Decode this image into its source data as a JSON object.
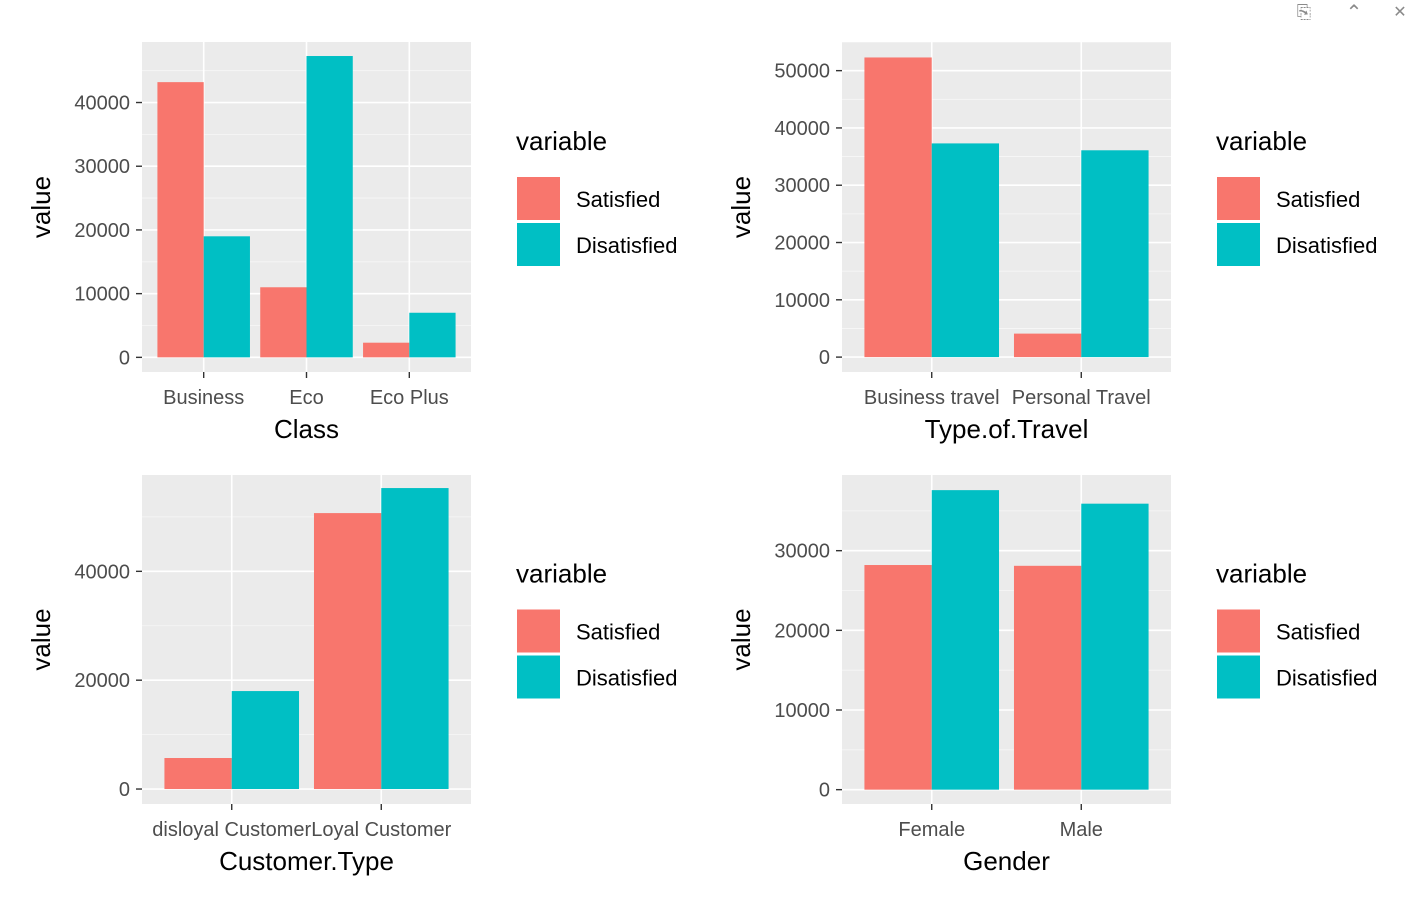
{
  "toolbar": {
    "items": [
      {
        "name": "export-icon",
        "glyph": "⎘"
      },
      {
        "name": "collapse-up-icon",
        "glyph": "⌃"
      },
      {
        "name": "close-icon",
        "glyph": "✕"
      }
    ]
  },
  "colors": {
    "panel_bg": "#EBEBEB",
    "grid_major": "#FFFFFF",
    "tick_text": "#4D4D4D",
    "axis_title": "#000000",
    "series": [
      "#F8766D",
      "#00BFC4"
    ]
  },
  "legend": {
    "title": "variable",
    "entries": [
      "Satisfied",
      "Disatisfied"
    ]
  },
  "chart_data": [
    {
      "type": "bar",
      "xlabel": "Class",
      "ylabel": "value",
      "categories": [
        "Business",
        "Eco",
        "Eco Plus"
      ],
      "ylim": [
        -2300,
        49500
      ],
      "yticks": [
        0,
        10000,
        20000,
        30000,
        40000
      ],
      "ytick_labels": [
        "0",
        "10000",
        "20000",
        "30000",
        "40000"
      ],
      "series": [
        {
          "name": "Satisfied",
          "values": [
            43200,
            11000,
            2300
          ]
        },
        {
          "name": "Disatisfied",
          "values": [
            19000,
            47300,
            7000
          ]
        }
      ],
      "legend_position": "right"
    },
    {
      "type": "bar",
      "xlabel": "Type.of.Travel",
      "ylabel": "value",
      "categories": [
        "Business travel",
        "Personal Travel"
      ],
      "ylim": [
        -2600,
        55000
      ],
      "yticks": [
        0,
        10000,
        20000,
        30000,
        40000,
        50000
      ],
      "ytick_labels": [
        "0",
        "10000",
        "20000",
        "30000",
        "40000",
        "50000"
      ],
      "series": [
        {
          "name": "Satisfied",
          "values": [
            52300,
            4100
          ]
        },
        {
          "name": "Disatisfied",
          "values": [
            37300,
            36100
          ]
        }
      ],
      "legend_position": "right"
    },
    {
      "type": "bar",
      "xlabel": "Customer.Type",
      "ylabel": "value",
      "categories": [
        "disloyal Customer",
        "Loyal Customer"
      ],
      "ylim": [
        -2750,
        57700
      ],
      "yticks": [
        0,
        20000,
        40000
      ],
      "ytick_labels": [
        "0",
        "20000",
        "40000"
      ],
      "series": [
        {
          "name": "Satisfied",
          "values": [
            5700,
            50700
          ]
        },
        {
          "name": "Disatisfied",
          "values": [
            18000,
            55300
          ]
        }
      ],
      "legend_position": "right"
    },
    {
      "type": "bar",
      "xlabel": "Gender",
      "ylabel": "value",
      "categories": [
        "Female",
        "Male"
      ],
      "ylim": [
        -1800,
        39500
      ],
      "yticks": [
        0,
        10000,
        20000,
        30000
      ],
      "ytick_labels": [
        "0",
        "10000",
        "20000",
        "30000"
      ],
      "series": [
        {
          "name": "Satisfied",
          "values": [
            28200,
            28100
          ]
        },
        {
          "name": "Disatisfied",
          "values": [
            37600,
            35900
          ]
        }
      ],
      "legend_position": "right"
    }
  ]
}
